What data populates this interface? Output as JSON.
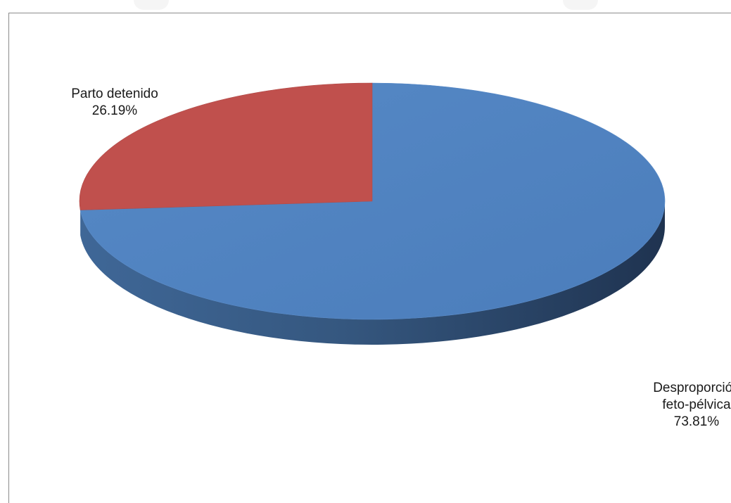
{
  "chart_data": {
    "type": "pie",
    "style": "3d",
    "title": "",
    "slices": [
      {
        "label_lines": [
          "Parto detenido"
        ],
        "value": 26.19,
        "value_label": "26.19%",
        "color": "#C0504D"
      },
      {
        "label_lines": [
          "Desproporción",
          "feto-pélvica"
        ],
        "value": 73.81,
        "value_label": "73.81%",
        "color": "#4F81BD"
      }
    ],
    "legend": "none"
  }
}
